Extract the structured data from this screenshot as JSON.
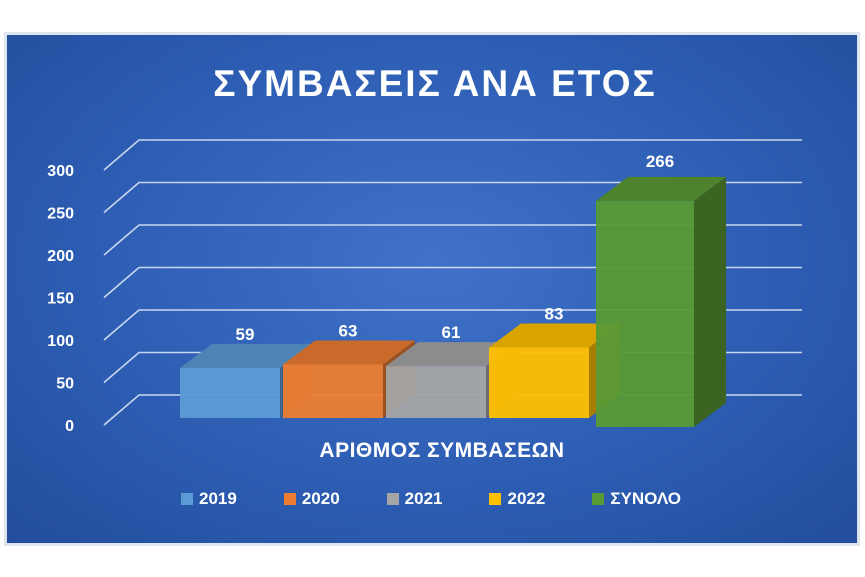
{
  "chart_data": {
    "type": "bar",
    "title": "ΣΥΜΒΑΣΕΙΣ ΑΝΑ ΕΤΟΣ",
    "xlabel": "ΑΡΙΘΜΟΣ ΣΥΜΒΑΣΕΩΝ",
    "ylabel": "",
    "ylim": [
      0,
      300
    ],
    "yticks": [
      "0",
      "50",
      "100",
      "150",
      "200",
      "250",
      "300"
    ],
    "grid": true,
    "legend_position": "bottom",
    "series": [
      {
        "name": "2019",
        "value": 59,
        "label": "59",
        "color": "#5b9bd5"
      },
      {
        "name": "2020",
        "value": 63,
        "label": "63",
        "color": "#ed7d31"
      },
      {
        "name": "2021",
        "value": 61,
        "label": "61",
        "color": "#a5a5a5"
      },
      {
        "name": "2022",
        "value": 83,
        "label": "83",
        "color": "#ffc000"
      },
      {
        "name": "ΣΥΝΟΛΟ",
        "value": 266,
        "label": "266",
        "color": "#5a9a35"
      }
    ]
  }
}
